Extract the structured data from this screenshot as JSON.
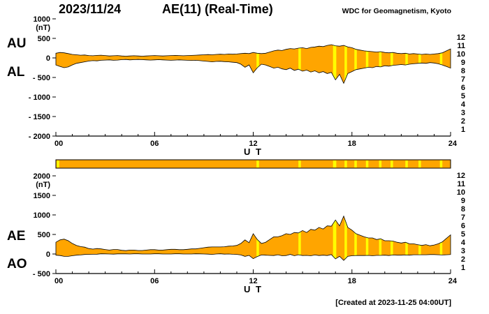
{
  "header": {
    "date": "2023/11/24",
    "title": "AE(11) (Real-Time)",
    "source": "WDC for Geomagnetism, Kyoto"
  },
  "footer": {
    "created": "[Created at 2023-11-25 04:00UT]"
  },
  "colors": {
    "fill": "#FFA500",
    "stripe": "#FFFF00",
    "outline": "#000000",
    "axis": "#000000",
    "background": "#FFFFFF"
  },
  "legend": {
    "values": [
      12,
      11,
      10,
      9,
      8,
      7,
      6,
      5,
      4,
      3,
      2,
      1
    ],
    "colors": [
      "#FF0000",
      "#E8112D",
      "#FF9900",
      "#FFCC00",
      "#55BBEE",
      "#2244EE",
      "#00CCCC",
      "#FF22CC",
      "#8833EE",
      "#000000",
      "#777777",
      "#BBBBBB"
    ]
  },
  "station_bar": {
    "main_level": 10,
    "segments_9_stations": [
      [
        0.05,
        0.2
      ],
      [
        12.2,
        12.35
      ],
      [
        14.75,
        14.9
      ],
      [
        16.85,
        17.05
      ],
      [
        17.55,
        17.7
      ],
      [
        18.15,
        18.3
      ],
      [
        18.85,
        19.0
      ],
      [
        19.65,
        19.8
      ],
      [
        20.35,
        20.5
      ],
      [
        21.25,
        21.4
      ],
      [
        22.05,
        22.2
      ],
      [
        23.35,
        23.5
      ]
    ]
  },
  "chart_data": [
    {
      "type": "area",
      "title": "AU / AL",
      "xlabel": "U T",
      "ylabel": "(nT)",
      "xlim": [
        0,
        24
      ],
      "ylim": [
        -2000,
        1000
      ],
      "yticks": [
        1000,
        500,
        0,
        -500,
        -1000,
        -1500,
        -2000
      ],
      "xticks": [
        "00",
        "06",
        "12",
        "18",
        "24"
      ],
      "x_start": 0,
      "x_step": 0.25,
      "x_count": 97,
      "left_labels": [
        "AU",
        "AL"
      ],
      "stripes": [
        [
          12.2,
          12.35
        ],
        [
          14.75,
          14.9
        ],
        [
          16.85,
          17.05
        ],
        [
          17.55,
          17.7
        ],
        [
          18.15,
          18.3
        ],
        [
          18.85,
          19.0
        ],
        [
          19.65,
          19.8
        ],
        [
          20.35,
          20.5
        ],
        [
          21.25,
          21.4
        ],
        [
          22.05,
          22.2
        ],
        [
          23.35,
          23.5
        ]
      ],
      "series": [
        {
          "name": "AU",
          "values": [
            120,
            140,
            130,
            110,
            90,
            80,
            70,
            75,
            60,
            55,
            65,
            70,
            60,
            50,
            55,
            60,
            50,
            45,
            50,
            55,
            50,
            45,
            50,
            55,
            60,
            55,
            50,
            55,
            60,
            65,
            60,
            55,
            60,
            65,
            70,
            75,
            80,
            85,
            80,
            90,
            95,
            90,
            100,
            95,
            100,
            110,
            120,
            110,
            140,
            120,
            110,
            120,
            150,
            180,
            200,
            190,
            220,
            240,
            230,
            250,
            260,
            240,
            270,
            280,
            300,
            290,
            320,
            340,
            310,
            300,
            320,
            280,
            260,
            220,
            200,
            180,
            170,
            160,
            150,
            160,
            140,
            130,
            140,
            120,
            110,
            120,
            100,
            110,
            100,
            90,
            100,
            90,
            100,
            110,
            130,
            180,
            230
          ]
        },
        {
          "name": "AL",
          "values": [
            -180,
            -220,
            -250,
            -230,
            -180,
            -140,
            -120,
            -100,
            -80,
            -70,
            -75,
            -60,
            -55,
            -50,
            -60,
            -55,
            -45,
            -40,
            -50,
            -45,
            -40,
            -45,
            -50,
            -55,
            -50,
            -45,
            -50,
            -55,
            -60,
            -55,
            -50,
            -55,
            -60,
            -65,
            -60,
            -70,
            -80,
            -90,
            -100,
            -90,
            -85,
            -95,
            -100,
            -110,
            -120,
            -160,
            -240,
            -180,
            -380,
            -250,
            -160,
            -180,
            -220,
            -260,
            -240,
            -280,
            -300,
            -260,
            -320,
            -290,
            -340,
            -310,
            -360,
            -330,
            -380,
            -350,
            -400,
            -370,
            -560,
            -420,
            -650,
            -400,
            -350,
            -300,
            -280,
            -260,
            -240,
            -250,
            -220,
            -230,
            -200,
            -210,
            -190,
            -180,
            -170,
            -180,
            -160,
            -150,
            -140,
            -130,
            -140,
            -120,
            -130,
            -150,
            -180,
            -220,
            -260
          ]
        }
      ]
    },
    {
      "type": "area",
      "title": "AE / AO",
      "xlabel": "U T",
      "ylabel": "(nT)",
      "xlim": [
        0,
        24
      ],
      "ylim": [
        -500,
        2000
      ],
      "yticks": [
        2000,
        1500,
        1000,
        500,
        0,
        -500
      ],
      "xticks": [
        "00",
        "06",
        "12",
        "18",
        "24"
      ],
      "x_start": 0,
      "x_step": 0.25,
      "x_count": 97,
      "left_labels": [
        "AE",
        "AO"
      ],
      "stripes": [
        [
          12.2,
          12.35
        ],
        [
          14.75,
          14.9
        ],
        [
          16.85,
          17.05
        ],
        [
          17.55,
          17.7
        ],
        [
          18.15,
          18.3
        ],
        [
          18.85,
          19.0
        ],
        [
          19.65,
          19.8
        ],
        [
          20.35,
          20.5
        ],
        [
          21.25,
          21.4
        ],
        [
          22.05,
          22.2
        ],
        [
          23.35,
          23.5
        ]
      ],
      "series": [
        {
          "name": "AE",
          "values": [
            300,
            360,
            380,
            340,
            270,
            220,
            190,
            175,
            140,
            125,
            140,
            130,
            115,
            100,
            115,
            115,
            95,
            85,
            100,
            100,
            90,
            90,
            100,
            110,
            110,
            100,
            100,
            110,
            120,
            120,
            110,
            110,
            120,
            130,
            130,
            145,
            160,
            175,
            180,
            180,
            180,
            185,
            200,
            205,
            220,
            270,
            360,
            290,
            520,
            370,
            270,
            300,
            370,
            440,
            440,
            470,
            520,
            500,
            550,
            540,
            600,
            550,
            630,
            610,
            680,
            640,
            720,
            710,
            870,
            720,
            970,
            680,
            610,
            520,
            480,
            440,
            410,
            410,
            370,
            390,
            340,
            340,
            330,
            300,
            280,
            300,
            260,
            260,
            240,
            220,
            240,
            210,
            230,
            260,
            310,
            400,
            490
          ]
        },
        {
          "name": "AO",
          "values": [
            -30,
            -40,
            -60,
            -60,
            -45,
            -30,
            -25,
            -13,
            -10,
            -8,
            -5,
            5,
            3,
            0,
            -3,
            3,
            3,
            3,
            0,
            5,
            5,
            0,
            0,
            0,
            5,
            5,
            0,
            0,
            0,
            5,
            5,
            0,
            0,
            0,
            5,
            3,
            0,
            -3,
            -10,
            0,
            5,
            -3,
            0,
            -8,
            -10,
            -25,
            -60,
            -35,
            -120,
            -65,
            -25,
            -30,
            -35,
            -40,
            -20,
            -45,
            -40,
            -10,
            -45,
            -20,
            -40,
            -35,
            -45,
            -25,
            -40,
            -30,
            -40,
            -15,
            -125,
            -60,
            -165,
            -60,
            -45,
            -40,
            -40,
            -40,
            -35,
            -45,
            -35,
            -35,
            -30,
            -40,
            -25,
            -30,
            -30,
            -25,
            -30,
            -20,
            -20,
            -20,
            -20,
            -15,
            -15,
            -20,
            -25,
            -20,
            -15
          ]
        }
      ]
    }
  ]
}
